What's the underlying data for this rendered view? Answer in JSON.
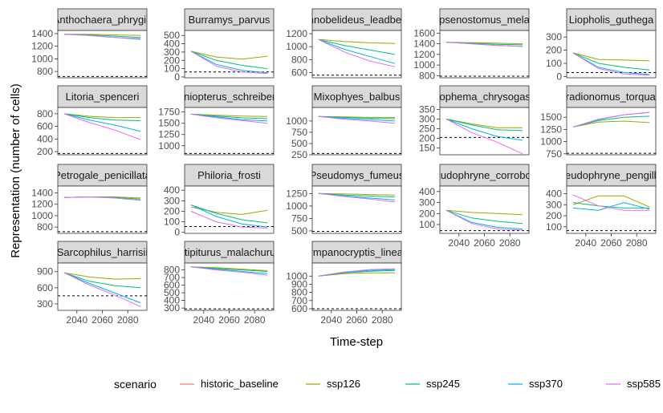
{
  "chart_data": {
    "type": "line",
    "xlabel": "Time-step",
    "ylabel": "Representation (number of cells)",
    "x_tick_labels": [
      "2040",
      "2060",
      "2080"
    ],
    "legend": {
      "title": "scenario",
      "position": "bottom",
      "entries": [
        {
          "name": "historic_baseline",
          "color": "#F8766D"
        },
        {
          "name": "ssp126",
          "color": "#A3A500"
        },
        {
          "name": "ssp245",
          "color": "#00BF7D"
        },
        {
          "name": "ssp370",
          "color": "#00B0F6"
        },
        {
          "name": "ssp585",
          "color": "#E76BF3"
        }
      ]
    },
    "panels": [
      {
        "title": "Anthochaera_phrygia",
        "ylim": [
          700,
          1450
        ],
        "yticks": [
          800,
          1000,
          1200,
          1400
        ],
        "threshold": 720,
        "series": {
          "ssp126": [
            1390,
            1390,
            1380,
            1370
          ],
          "ssp245": [
            1390,
            1380,
            1360,
            1340
          ],
          "ssp370": [
            1390,
            1370,
            1340,
            1310
          ],
          "ssp585": [
            1390,
            1370,
            1340,
            1320
          ]
        }
      },
      {
        "title": "Burramys_parvus",
        "ylim": [
          -10,
          560
        ],
        "yticks": [
          0,
          100,
          200,
          300,
          400,
          500
        ],
        "threshold": 60,
        "series": {
          "ssp126": [
            310,
            240,
            215,
            250
          ],
          "ssp245": [
            310,
            200,
            140,
            100
          ],
          "ssp370": [
            310,
            150,
            80,
            50
          ],
          "ssp585": [
            310,
            130,
            60,
            40
          ]
        }
      },
      {
        "title": "Gymnobelideus_leadbeateri",
        "ylim": [
          520,
          1250
        ],
        "yticks": [
          600,
          800,
          1000,
          1200
        ],
        "threshold": 560,
        "series": {
          "ssp126": [
            1110,
            1080,
            1060,
            1050
          ],
          "ssp245": [
            1110,
            1020,
            950,
            880
          ],
          "ssp370": [
            1110,
            960,
            850,
            740
          ],
          "ssp585": [
            1110,
            920,
            780,
            690
          ]
        }
      },
      {
        "title": "Hypsipsenostomus_melanurus",
        "ylim": [
          760,
          1650
        ],
        "yticks": [
          800,
          1000,
          1200,
          1400,
          1600
        ],
        "threshold": 790,
        "series": {
          "ssp126": [
            1430,
            1420,
            1410,
            1400
          ],
          "ssp245": [
            1430,
            1410,
            1390,
            1380
          ],
          "ssp370": [
            1430,
            1400,
            1370,
            1350
          ],
          "ssp585": [
            1430,
            1400,
            1370,
            1350
          ]
        }
      },
      {
        "title": "Liopholis_guthega",
        "ylim": [
          -10,
          350
        ],
        "yticks": [
          0,
          100,
          200,
          300
        ],
        "threshold": 30,
        "series": {
          "ssp126": [
            180,
            130,
            125,
            120
          ],
          "ssp245": [
            180,
            100,
            70,
            50
          ],
          "ssp370": [
            180,
            70,
            30,
            15
          ],
          "ssp585": [
            180,
            60,
            20,
            10
          ]
        }
      },
      {
        "title": "Litoria_spenceri",
        "ylim": [
          150,
          900
        ],
        "yticks": [
          200,
          400,
          600,
          800
        ],
        "threshold": 170,
        "series": {
          "ssp126": [
            800,
            760,
            740,
            740
          ],
          "ssp245": [
            800,
            740,
            700,
            690
          ],
          "ssp370": [
            800,
            700,
            620,
            520
          ],
          "ssp585": [
            800,
            660,
            540,
            390
          ]
        }
      },
      {
        "title": "Miniopterus_schreibersii",
        "ylim": [
          800,
          1850
        ],
        "yticks": [
          1000,
          1250,
          1500,
          1750
        ],
        "threshold": 830,
        "series": {
          "ssp126": [
            1700,
            1680,
            1660,
            1650
          ],
          "ssp245": [
            1700,
            1660,
            1620,
            1600
          ],
          "ssp370": [
            1700,
            1640,
            1580,
            1550
          ],
          "ssp585": [
            1700,
            1620,
            1560,
            1500
          ]
        }
      },
      {
        "title": "Mixophyes_balbus",
        "ylim": [
          250,
          1300
        ],
        "yticks": [
          250,
          500,
          750,
          1000
        ],
        "threshold": 280,
        "series": {
          "ssp126": [
            1100,
            1090,
            1080,
            1080
          ],
          "ssp245": [
            1100,
            1080,
            1060,
            1050
          ],
          "ssp370": [
            1100,
            1060,
            1030,
            1000
          ],
          "ssp585": [
            1100,
            1040,
            1000,
            950
          ]
        }
      },
      {
        "title": "Neophema_chrysogaster",
        "ylim": [
          115,
          360
        ],
        "yticks": [
          150,
          200,
          250,
          300,
          350
        ],
        "threshold": 205,
        "series": {
          "ssp126": [
            300,
            275,
            255,
            255
          ],
          "ssp245": [
            300,
            270,
            245,
            240
          ],
          "ssp370": [
            300,
            250,
            210,
            190
          ],
          "ssp585": [
            300,
            230,
            180,
            120
          ]
        }
      },
      {
        "title": "Paradionomus_torquatus",
        "ylim": [
          730,
          1700
        ],
        "yticks": [
          750,
          1000,
          1250,
          1500
        ],
        "threshold": 760,
        "series": {
          "ssp126": [
            1300,
            1400,
            1420,
            1390
          ],
          "ssp245": [
            1300,
            1430,
            1500,
            1520
          ],
          "ssp370": [
            1300,
            1450,
            1550,
            1600
          ],
          "ssp585": [
            1300,
            1460,
            1550,
            1600
          ]
        }
      },
      {
        "title": "Petrogale_penicillata",
        "ylim": [
          690,
          1520
        ],
        "yticks": [
          800,
          1000,
          1200,
          1400
        ],
        "threshold": 720,
        "series": {
          "ssp126": [
            1320,
            1330,
            1330,
            1310
          ],
          "ssp245": [
            1320,
            1330,
            1320,
            1290
          ],
          "ssp370": [
            1320,
            1330,
            1310,
            1270
          ],
          "ssp585": [
            1320,
            1330,
            1310,
            1270
          ]
        }
      },
      {
        "title": "Philoria_frosti",
        "ylim": [
          -10,
          440
        ],
        "yticks": [
          0,
          100,
          200,
          300,
          400
        ],
        "threshold": 55,
        "series": {
          "ssp126": [
            240,
            190,
            170,
            210
          ],
          "ssp245": [
            260,
            180,
            120,
            90
          ],
          "ssp370": [
            260,
            150,
            80,
            50
          ],
          "ssp585": [
            200,
            100,
            50,
            40
          ]
        }
      },
      {
        "title": "Pseudomys_fumeus",
        "ylim": [
          450,
          1400
        ],
        "yticks": [
          500,
          750,
          1000,
          1250
        ],
        "threshold": 490,
        "series": {
          "ssp126": [
            1250,
            1240,
            1230,
            1220
          ],
          "ssp245": [
            1250,
            1220,
            1200,
            1180
          ],
          "ssp370": [
            1250,
            1200,
            1160,
            1120
          ],
          "ssp585": [
            1250,
            1190,
            1140,
            1080
          ]
        }
      },
      {
        "title": "Pseudophryne_corroboree",
        "ylim": [
          20,
          450
        ],
        "yticks": [
          100,
          200,
          300,
          400
        ],
        "threshold": 45,
        "series": {
          "ssp126": [
            230,
            210,
            200,
            190
          ],
          "ssp245": [
            230,
            160,
            130,
            110
          ],
          "ssp370": [
            230,
            120,
            75,
            60
          ],
          "ssp585": [
            230,
            110,
            60,
            50
          ]
        }
      },
      {
        "title": "Pseudophryne_pengilleyi",
        "ylim": [
          40,
          470
        ],
        "yticks": [
          100,
          200,
          300,
          400
        ],
        "threshold": 65,
        "series": {
          "ssp126": [
            300,
            380,
            380,
            280
          ],
          "ssp245": [
            320,
            290,
            270,
            270
          ],
          "ssp370": [
            270,
            250,
            320,
            260
          ],
          "ssp585": [
            390,
            290,
            250,
            250
          ]
        }
      },
      {
        "title": "Sarcophilus_harrisii",
        "ylim": [
          180,
          1060
        ],
        "yticks": [
          300,
          600,
          900
        ],
        "threshold": 450,
        "series": {
          "ssp126": [
            880,
            800,
            760,
            770
          ],
          "ssp245": [
            880,
            720,
            640,
            600
          ],
          "ssp370": [
            880,
            680,
            500,
            320
          ],
          "ssp585": [
            880,
            650,
            460,
            250
          ]
        }
      },
      {
        "title": "Stipiturus_malachurus",
        "ylim": [
          270,
          890
        ],
        "yticks": [
          300,
          400,
          500,
          600,
          700,
          800
        ],
        "threshold": 290,
        "series": {
          "ssp126": [
            840,
            830,
            810,
            790
          ],
          "ssp245": [
            840,
            820,
            800,
            780
          ],
          "ssp370": [
            840,
            810,
            780,
            750
          ],
          "ssp585": [
            840,
            800,
            770,
            730
          ]
        }
      },
      {
        "title": "Tympanocryptis_lineata",
        "ylim": [
          580,
          1160
        ],
        "yticks": [
          600,
          700,
          800,
          900,
          1000
        ],
        "threshold": 600,
        "series": {
          "ssp126": [
            1000,
            1030,
            1040,
            1040
          ],
          "ssp245": [
            1000,
            1040,
            1060,
            1070
          ],
          "ssp370": [
            1000,
            1050,
            1070,
            1080
          ],
          "ssp585": [
            1000,
            1050,
            1080,
            1090
          ]
        }
      }
    ]
  }
}
